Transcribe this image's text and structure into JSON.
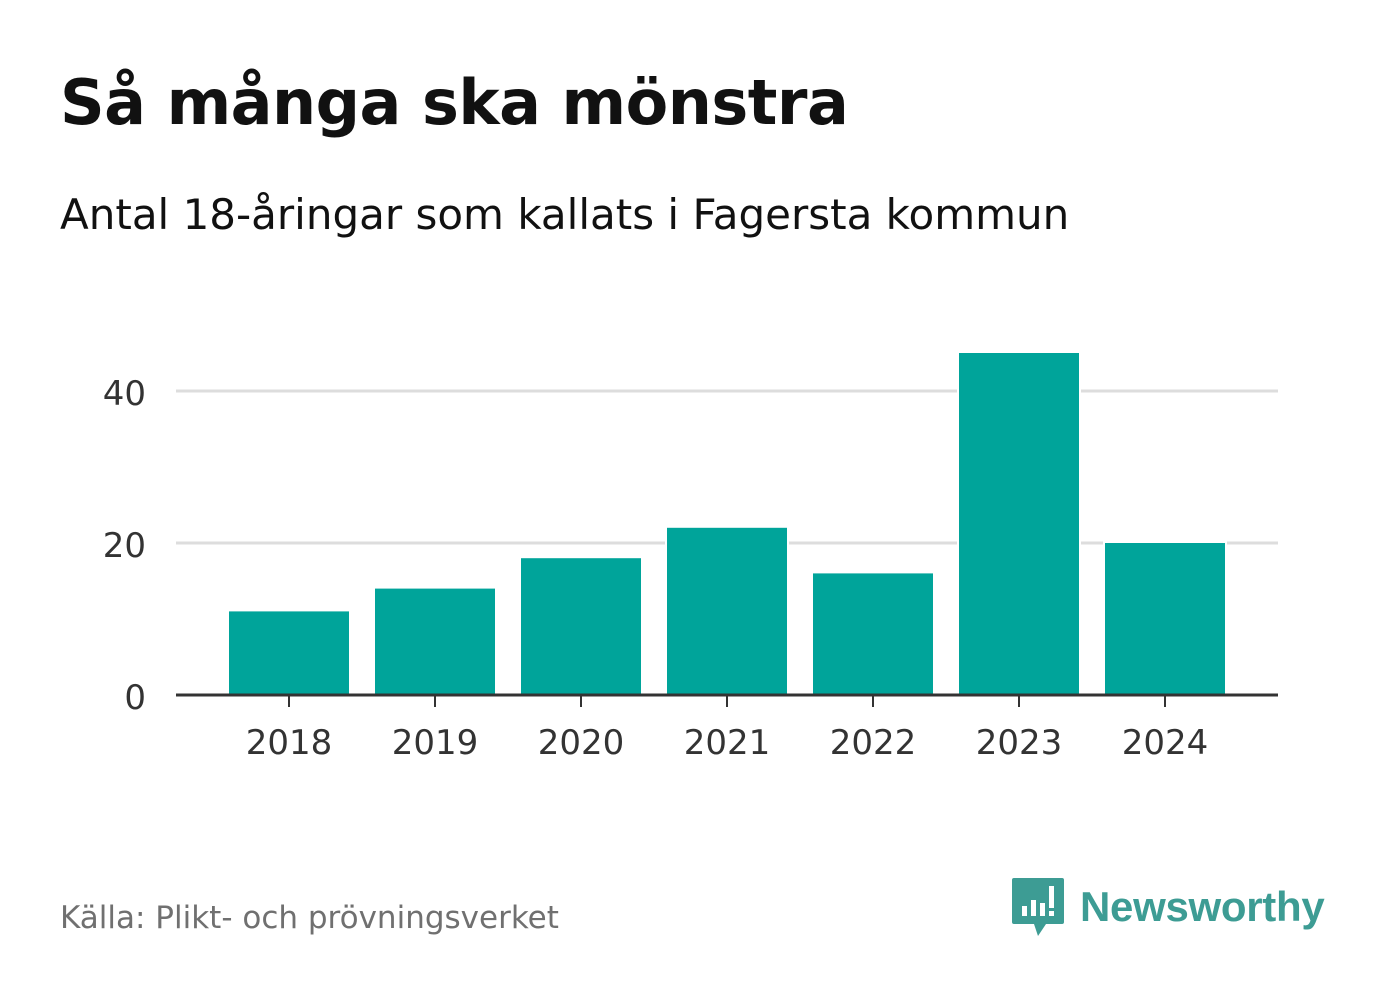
{
  "title": "Så många ska mönstra",
  "subtitle": "Antal 18-åringar som kallats i Fagersta kommun",
  "source": "Källa: Plikt- och prövningsverket",
  "brand": {
    "name": "Newsworthy",
    "icon": "newsworthy-logo-icon",
    "color": "#3d9c94"
  },
  "colors": {
    "bar": "#00a49a",
    "grid": "#dddddd",
    "axis": "#333333",
    "tick_text": "#333333"
  },
  "chart_data": {
    "type": "bar",
    "title": "Så många ska mönstra",
    "subtitle": "Antal 18-åringar som kallats i Fagersta kommun",
    "xlabel": "",
    "ylabel": "",
    "categories": [
      "2018",
      "2019",
      "2020",
      "2021",
      "2022",
      "2023",
      "2024"
    ],
    "values": [
      11,
      14,
      18,
      22,
      16,
      45,
      20
    ],
    "ylim": [
      0,
      45
    ],
    "yticks": [
      0,
      20,
      40
    ],
    "grid": true,
    "legend": "none"
  }
}
